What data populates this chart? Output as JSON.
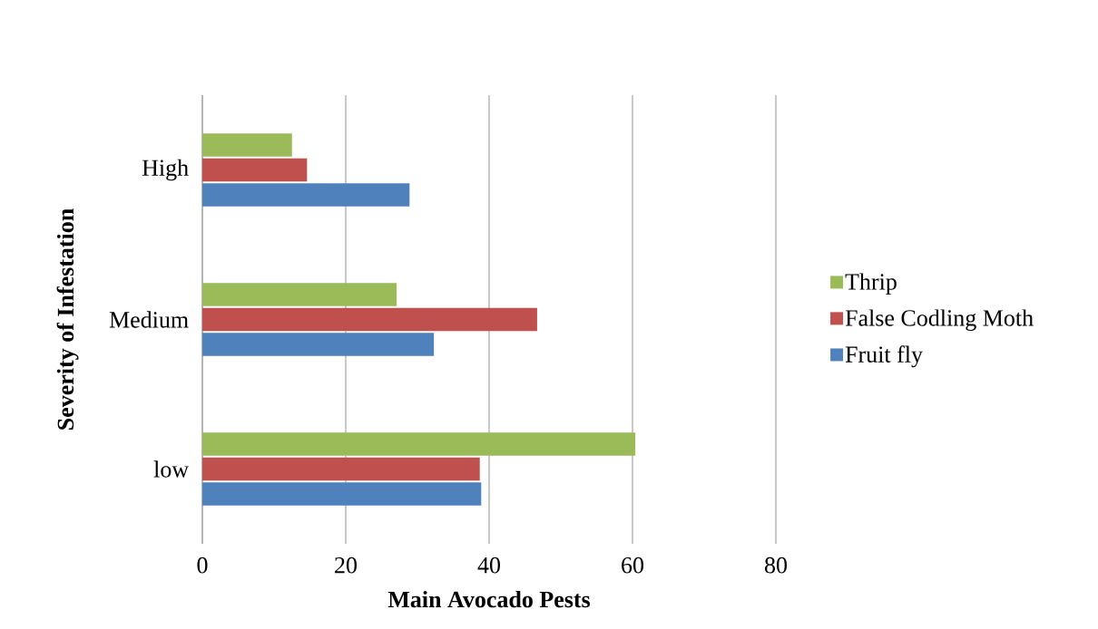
{
  "chart_data": {
    "type": "bar",
    "orientation": "horizontal",
    "xlabel": "Main Avocado Pests",
    "ylabel": "Severity of Infestation",
    "categories": [
      "High",
      "Medium",
      "low"
    ],
    "series": [
      {
        "name": "Fruit fly",
        "color": "#4f81bd",
        "values": [
          28.9,
          32.3,
          38.9
        ]
      },
      {
        "name": "False Codling Moth",
        "color": "#c0504d",
        "values": [
          14.6,
          46.7,
          38.7
        ]
      },
      {
        "name": "Thrip",
        "color": "#9bbb59",
        "values": [
          12.5,
          27.1,
          60.4
        ]
      }
    ],
    "xlim": [
      0,
      80
    ],
    "xticks": [
      0,
      20,
      40,
      60,
      80
    ],
    "grid": "x",
    "legend": "right"
  }
}
